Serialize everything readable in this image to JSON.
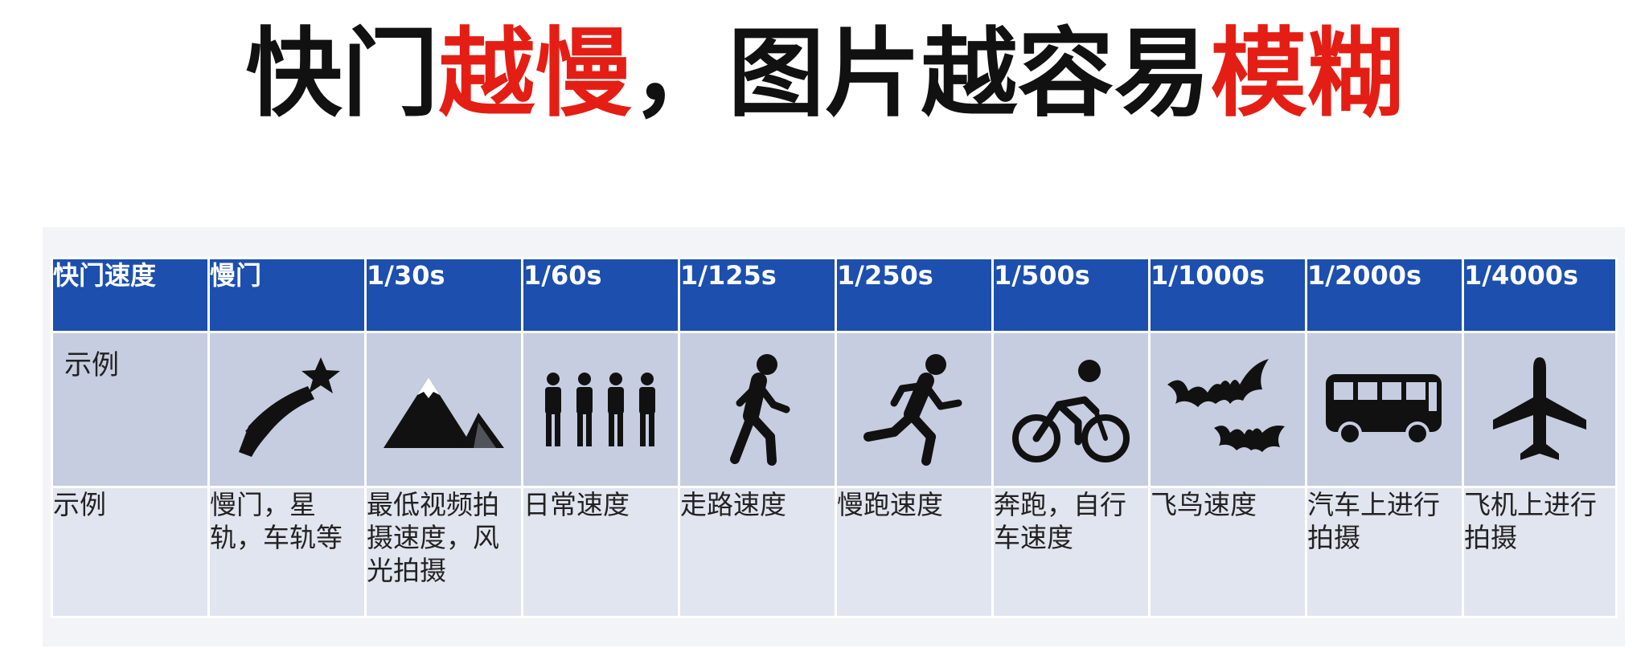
{
  "title": {
    "part1": "快门",
    "part2": "越慢",
    "part3": "，图片越容易",
    "part4": "模糊"
  },
  "table": {
    "header_label": "快门速度",
    "speeds": [
      "慢门",
      "1/30s",
      "1/60s",
      "1/125s",
      "1/250s",
      "1/500s",
      "1/1000s",
      "1/2000s",
      "1/4000s"
    ],
    "icon_row_label": "示例",
    "icons": [
      "shooting-star-icon",
      "mountain-icon",
      "people-group-icon",
      "walking-person-icon",
      "running-person-icon",
      "cyclist-icon",
      "bats-icon",
      "bus-icon",
      "airplane-icon"
    ],
    "desc_row_label": "示例",
    "descriptions": [
      "慢门，星轨，车轨等",
      "最低视频拍摄速度，风光拍摄",
      "日常速度",
      "走路速度",
      "慢跑速度",
      "奔跑，自行车速度",
      "飞鸟速度",
      "汽车上进行拍摄",
      "飞机上进行拍摄"
    ]
  },
  "colors": {
    "header_blue": "#1c4fae",
    "icon_row": "#c6cde0",
    "desc_row": "#e1e5ef",
    "title_red": "#e41e14"
  }
}
